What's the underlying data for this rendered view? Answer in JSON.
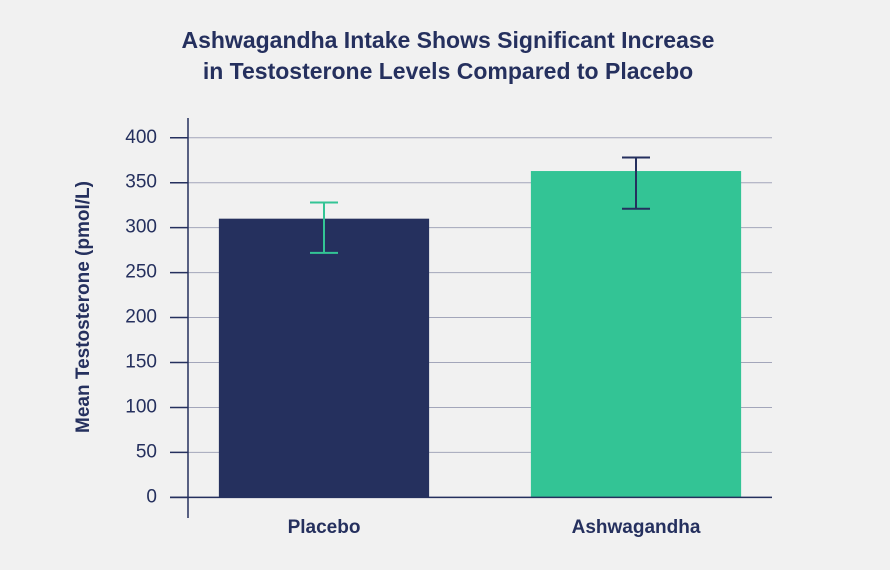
{
  "chart_data": {
    "type": "bar",
    "title": [
      "Ashwagandha Intake Shows Significant Increase",
      "in Testosterone Levels Compared to Placebo"
    ],
    "y_label": "Mean Testosterone (pmol/L)",
    "categories": [
      "Placebo",
      "Ashwagandha"
    ],
    "values": [
      310,
      363
    ],
    "error_low": [
      272,
      321
    ],
    "error_high": [
      328,
      378
    ],
    "colors": [
      "#25305e",
      "#33c495"
    ],
    "error_colors": [
      "#33c495",
      "#25305e"
    ],
    "ylim": [
      -23,
      422
    ],
    "yticks": [
      0,
      50,
      100,
      150,
      200,
      250,
      300,
      350,
      400
    ],
    "grid": true
  }
}
